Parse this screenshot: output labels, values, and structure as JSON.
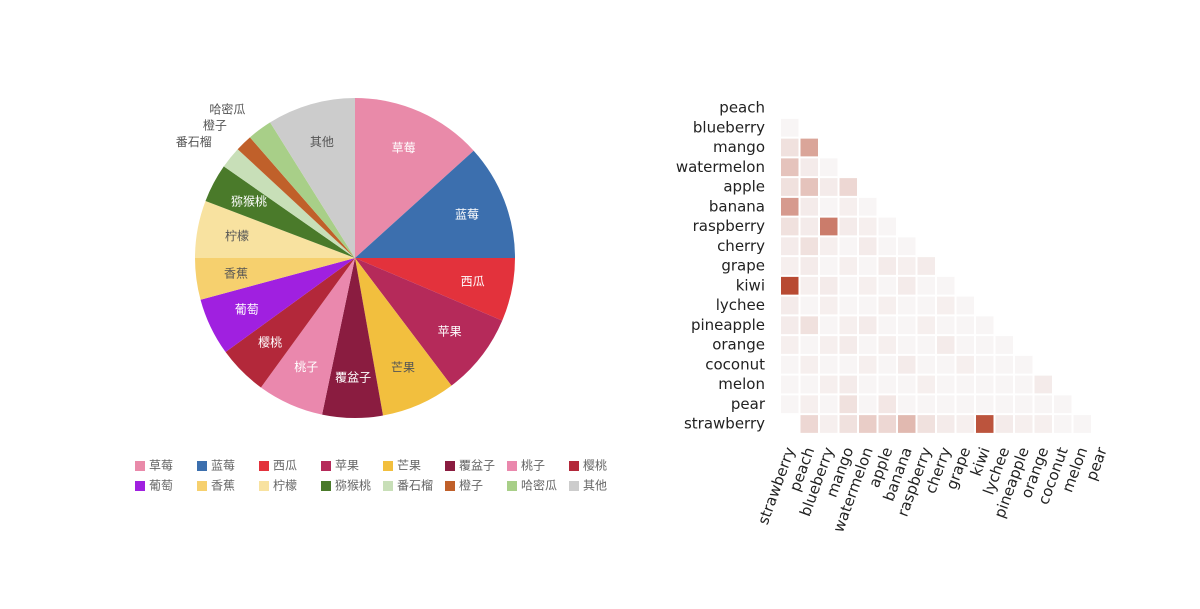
{
  "chart_data": [
    {
      "type": "pie",
      "categories": [
        "草莓",
        "蓝莓",
        "西瓜",
        "苹果",
        "芒果",
        "覆盆子",
        "桃子",
        "樱桃",
        "葡萄",
        "香蕉",
        "柠檬",
        "猕猴桃",
        "番石榴",
        "橙子",
        "哈密瓜",
        "其他"
      ],
      "values": [
        13.3,
        11.7,
        6.4,
        8.3,
        7.5,
        6.1,
        6.7,
        5.0,
        5.8,
        4.2,
        5.8,
        3.9,
        2.2,
        1.7,
        2.5,
        8.9
      ],
      "colors": [
        "#e98aa9",
        "#3c6fae",
        "#e3323c",
        "#b52a5a",
        "#f2bf3e",
        "#8a1c40",
        "#ea88ad",
        "#b3283a",
        "#a020e0",
        "#f6d06e",
        "#f8e2a0",
        "#4a7a2a",
        "#c8dfb8",
        "#c0602a",
        "#a8cf88",
        "#cccccc"
      ]
    },
    {
      "type": "heatmap",
      "x_categories": [
        "strawberry",
        "peach",
        "blueberry",
        "mango",
        "watermelon",
        "apple",
        "banana",
        "raspberry",
        "cherry",
        "grape",
        "kiwi",
        "lychee",
        "pineapple",
        "orange",
        "coconut",
        "melon",
        "pear"
      ],
      "y_categories": [
        "peach",
        "blueberry",
        "mango",
        "watermelon",
        "apple",
        "banana",
        "raspberry",
        "cherry",
        "grape",
        "kiwi",
        "lychee",
        "pineapple",
        "orange",
        "coconut",
        "melon",
        "pear",
        "strawberry"
      ],
      "colors": [
        "#f8f5f5",
        "#b84a32"
      ],
      "values": [
        [
          null,
          null,
          null,
          null,
          null,
          null,
          null,
          null,
          null,
          null,
          null,
          null,
          null,
          null,
          null,
          null,
          null
        ],
        [
          0.05,
          null,
          null,
          null,
          null,
          null,
          null,
          null,
          null,
          null,
          null,
          null,
          null,
          null,
          null,
          null,
          null
        ],
        [
          0.15,
          0.45,
          null,
          null,
          null,
          null,
          null,
          null,
          null,
          null,
          null,
          null,
          null,
          null,
          null,
          null,
          null
        ],
        [
          0.3,
          0.1,
          0.05,
          null,
          null,
          null,
          null,
          null,
          null,
          null,
          null,
          null,
          null,
          null,
          null,
          null,
          null
        ],
        [
          0.15,
          0.3,
          0.1,
          0.2,
          null,
          null,
          null,
          null,
          null,
          null,
          null,
          null,
          null,
          null,
          null,
          null,
          null
        ],
        [
          0.5,
          0.1,
          0.05,
          0.08,
          0.05,
          null,
          null,
          null,
          null,
          null,
          null,
          null,
          null,
          null,
          null,
          null,
          null
        ],
        [
          0.15,
          0.1,
          0.65,
          0.1,
          0.08,
          0.05,
          null,
          null,
          null,
          null,
          null,
          null,
          null,
          null,
          null,
          null,
          null
        ],
        [
          0.1,
          0.15,
          0.08,
          0.05,
          0.1,
          0.05,
          0.05,
          null,
          null,
          null,
          null,
          null,
          null,
          null,
          null,
          null,
          null
        ],
        [
          0.08,
          0.1,
          0.05,
          0.08,
          0.05,
          0.1,
          0.08,
          0.1,
          null,
          null,
          null,
          null,
          null,
          null,
          null,
          null,
          null
        ],
        [
          0.9,
          0.08,
          0.1,
          0.05,
          0.08,
          0.05,
          0.1,
          0.05,
          0.05,
          null,
          null,
          null,
          null,
          null,
          null,
          null,
          null
        ],
        [
          0.1,
          0.05,
          0.08,
          0.05,
          0.05,
          0.08,
          0.05,
          0.05,
          0.08,
          0.05,
          null,
          null,
          null,
          null,
          null,
          null,
          null
        ],
        [
          0.1,
          0.15,
          0.05,
          0.08,
          0.1,
          0.05,
          0.05,
          0.08,
          0.05,
          0.05,
          0.05,
          null,
          null,
          null,
          null,
          null,
          null
        ],
        [
          0.08,
          0.05,
          0.08,
          0.1,
          0.05,
          0.08,
          0.05,
          0.05,
          0.1,
          0.05,
          0.05,
          0.05,
          null,
          null,
          null,
          null,
          null
        ],
        [
          0.05,
          0.08,
          0.05,
          0.05,
          0.08,
          0.05,
          0.1,
          0.05,
          0.05,
          0.08,
          0.05,
          0.05,
          0.05,
          null,
          null,
          null,
          null
        ],
        [
          0.05,
          0.05,
          0.08,
          0.1,
          0.05,
          0.05,
          0.05,
          0.08,
          0.05,
          0.05,
          0.05,
          0.05,
          0.05,
          0.1,
          null,
          null,
          null
        ],
        [
          0.05,
          0.08,
          0.05,
          0.15,
          0.05,
          0.12,
          0.05,
          0.05,
          0.05,
          0.05,
          0.05,
          0.05,
          0.05,
          0.05,
          0.05,
          null,
          null
        ],
        [
          null,
          0.2,
          0.08,
          0.15,
          0.25,
          0.2,
          0.35,
          0.15,
          0.1,
          0.08,
          0.85,
          0.1,
          0.08,
          0.08,
          0.05,
          0.05,
          null
        ]
      ]
    }
  ]
}
